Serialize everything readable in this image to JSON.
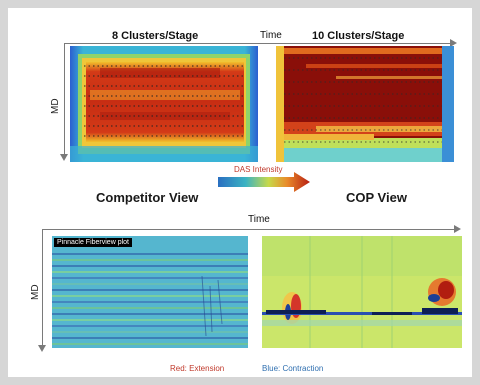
{
  "top": {
    "left_title": "8 Clusters/Stage",
    "time_label": "Time",
    "right_title": "10 Clusters/Stage",
    "md_label": "MD",
    "intensity_label": "DAS Intensity",
    "left_caption": "Competitor View",
    "right_caption": "COP View"
  },
  "bottom": {
    "time_label": "Time",
    "md_label": "MD",
    "plot_tag": "Pinnacle Fiberview plot",
    "legend_red": "Red: Extension",
    "legend_blue": "Blue: Contraction"
  },
  "colors": {
    "arrow_grey": "#7a7a7a",
    "legend_red": "#c0392b",
    "legend_blue": "#2f6fb0",
    "das_gradient": [
      "#2a6fc1",
      "#3bb3c3",
      "#c7d94a",
      "#e98b2a",
      "#b71e12"
    ]
  }
}
